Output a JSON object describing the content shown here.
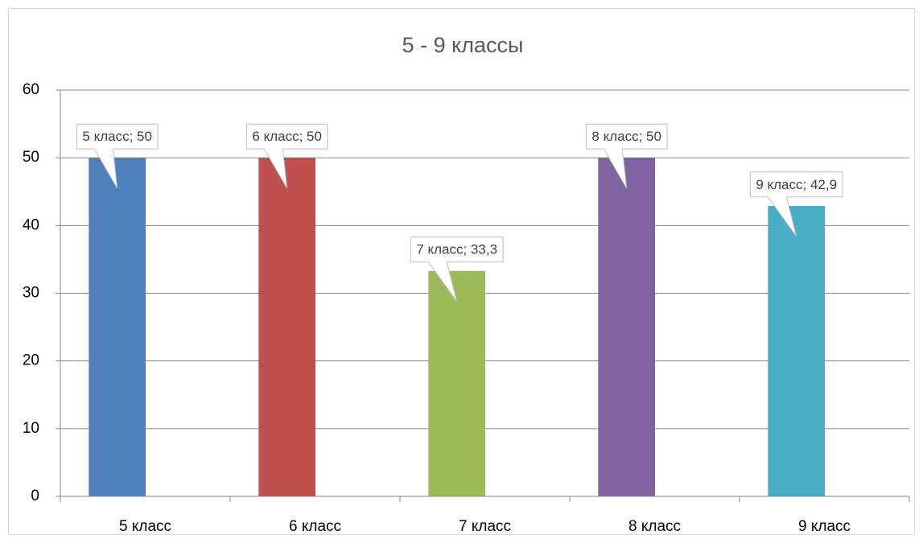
{
  "chart_data": {
    "type": "bar",
    "title": "5 - 9 классы",
    "categories": [
      "5 класс",
      "6 класс",
      "7 класс",
      "8 класс",
      "9 класс"
    ],
    "values": [
      50,
      50,
      33.3,
      50,
      42.9
    ],
    "value_labels": [
      "5 класс; 50",
      "6 класс; 50",
      "7 класс; 33,3",
      "8 класс; 50",
      "9 класс; 42,9"
    ],
    "colors": [
      "#4f81bd",
      "#c0504d",
      "#9bbb59",
      "#8064a2",
      "#4bacc6"
    ],
    "ylim": [
      0,
      60
    ],
    "yticks": [
      0,
      10,
      20,
      30,
      40,
      50,
      60
    ],
    "grid": true
  }
}
